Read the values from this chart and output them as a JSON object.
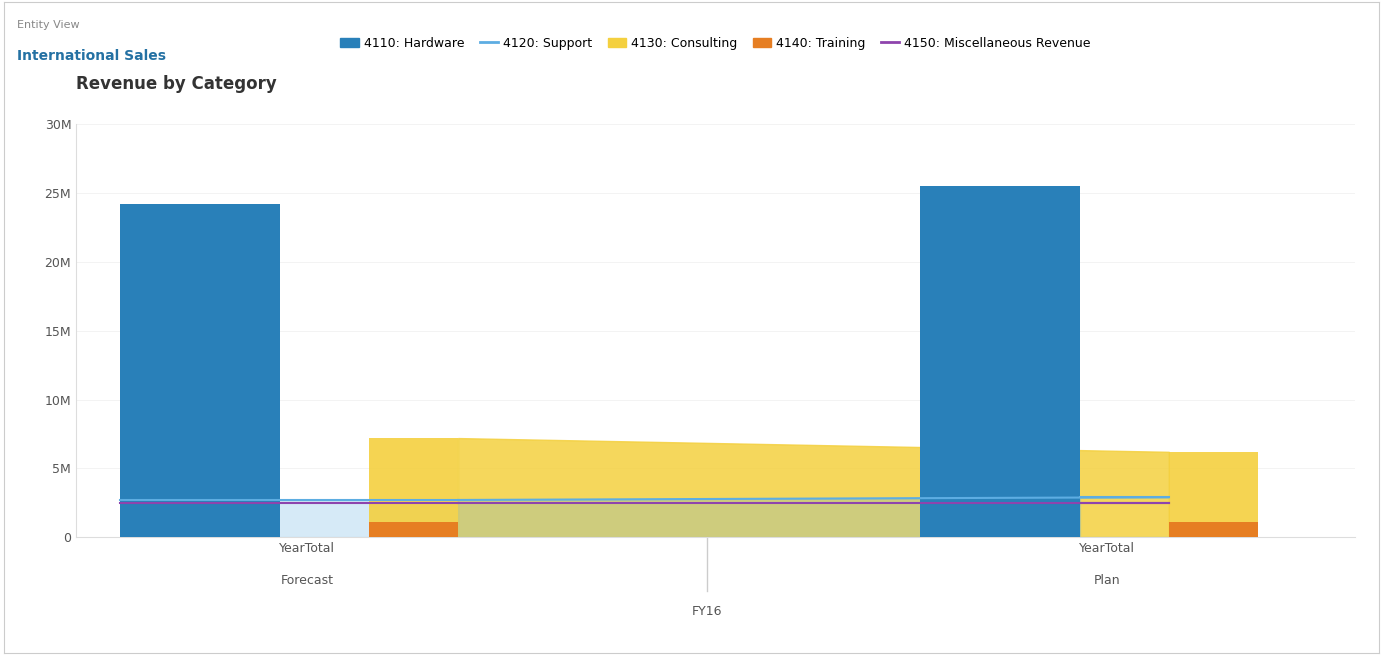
{
  "title": "Revenue by Category",
  "header_label": "Entity View",
  "header_title": "International Sales",
  "x_groups": [
    "Forecast",
    "Plan"
  ],
  "x_sublabel": "FY16",
  "x_tick": "YearTotal",
  "series": [
    {
      "name": "4110: Hardware",
      "type": "bar",
      "color": "#2980b9",
      "values": [
        24200000,
        25500000
      ]
    },
    {
      "name": "4120: Support",
      "type": "line",
      "color": "#5dade2",
      "values": [
        2700000,
        2900000
      ]
    },
    {
      "name": "4130: Consulting",
      "type": "area",
      "color": "#f4d03f",
      "values": [
        7200000,
        6200000
      ]
    },
    {
      "name": "4140: Training",
      "type": "bar",
      "color": "#e67e22",
      "values": [
        1100000,
        1100000
      ]
    },
    {
      "name": "4150: Miscellaneous Revenue",
      "type": "line",
      "color": "#8e44ad",
      "values": [
        2500000,
        2500000
      ]
    }
  ],
  "ylim": [
    0,
    30000000
  ],
  "yticks": [
    0,
    5000000,
    10000000,
    15000000,
    20000000,
    25000000,
    30000000
  ],
  "ytick_labels": [
    "0",
    "5M",
    "10M",
    "15M",
    "20M",
    "25M",
    "30M"
  ],
  "background_color": "#ffffff",
  "plot_bg": "#ffffff",
  "title_fontsize": 12,
  "axis_fontsize": 9,
  "legend_fontsize": 9
}
